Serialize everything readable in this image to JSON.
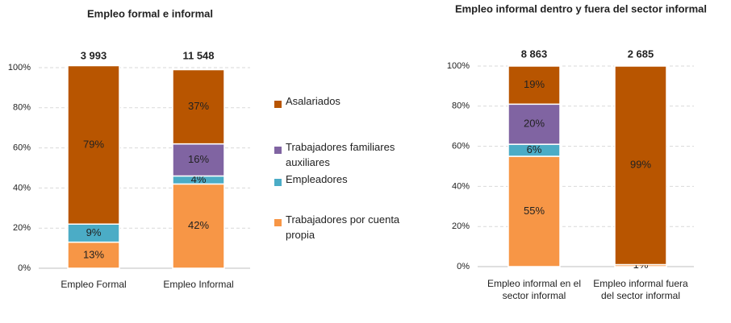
{
  "chart_data": [
    {
      "type": "stacked-bar",
      "title": "Empleo formal e informal",
      "categories": [
        "Empleo Formal",
        "Empleo Informal"
      ],
      "annotations": [
        "3 993",
        "11 548"
      ],
      "ylim": [
        0,
        100
      ],
      "yticks": [
        {
          "value": 0,
          "label": "0%"
        },
        {
          "value": 20,
          "label": "20%"
        },
        {
          "value": 40,
          "label": "40%"
        },
        {
          "value": 60,
          "label": "60%"
        },
        {
          "value": 80,
          "label": "80%"
        },
        {
          "value": 100,
          "label": "100%"
        }
      ],
      "grid": true,
      "legend": "right",
      "series": [
        {
          "name": "Trabajadores por cuenta propia",
          "color": "#f79646",
          "values": [
            13,
            42
          ],
          "value_labels": [
            "13%",
            "42%"
          ]
        },
        {
          "name": "Empleadores",
          "color": "#4bacc6",
          "values": [
            9,
            4
          ],
          "value_labels": [
            "9%",
            "4%"
          ]
        },
        {
          "name": "Trabajadores familiares auxiliares",
          "color": "#8064a2",
          "values": [
            null,
            16
          ],
          "value_labels": [
            null,
            "16%"
          ]
        },
        {
          "name": "Asalariados",
          "color": "#b85500",
          "values": [
            79,
            37
          ],
          "value_labels": [
            "79%",
            "37%"
          ]
        }
      ]
    },
    {
      "type": "stacked-bar",
      "title": "Empleo informal dentro y fuera del sector informal",
      "categories": [
        "Empleo informal en el sector informal",
        "Empleo informal fuera del sector informal"
      ],
      "annotations": [
        "8 863",
        "2 685"
      ],
      "ylim": [
        0,
        100
      ],
      "yticks": [
        {
          "value": 0,
          "label": "0%"
        },
        {
          "value": 20,
          "label": "20%"
        },
        {
          "value": 40,
          "label": "40%"
        },
        {
          "value": 60,
          "label": "60%"
        },
        {
          "value": 80,
          "label": "80%"
        },
        {
          "value": 100,
          "label": "100%"
        }
      ],
      "grid": true,
      "series": [
        {
          "color": "#f79646",
          "values": [
            55,
            1
          ],
          "value_labels": [
            "55%",
            "1%"
          ]
        },
        {
          "color": "#4bacc6",
          "values": [
            6,
            null
          ],
          "value_labels": [
            "6%",
            null
          ]
        },
        {
          "color": "#8064a2",
          "values": [
            20,
            null
          ],
          "value_labels": [
            "20%",
            null
          ]
        },
        {
          "color": "#b85500",
          "values": [
            19,
            99
          ],
          "value_labels": [
            "19%",
            "99%"
          ]
        }
      ]
    }
  ]
}
